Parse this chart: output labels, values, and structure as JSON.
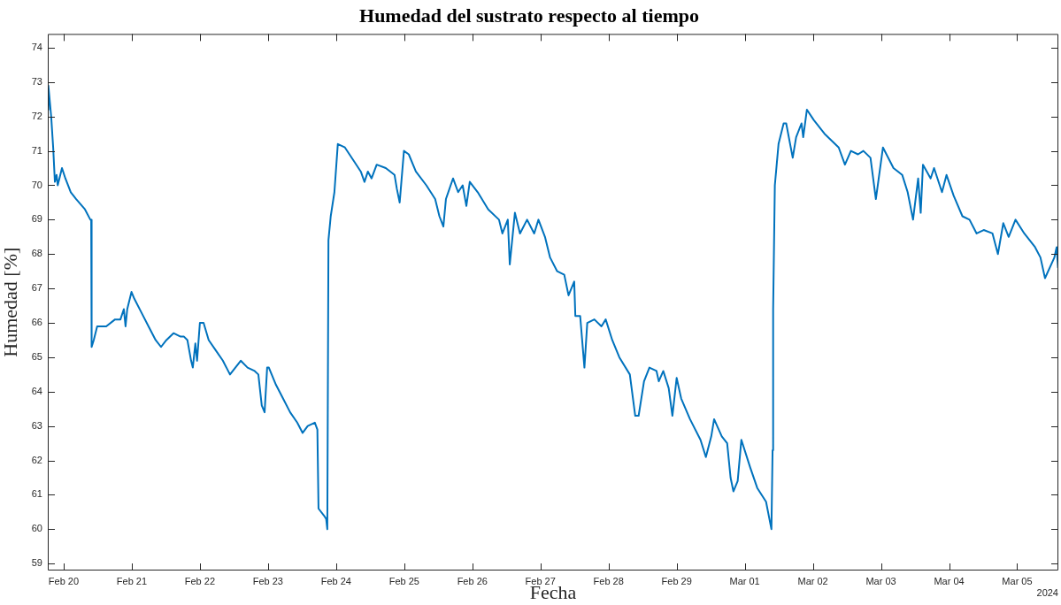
{
  "chart_data": {
    "type": "line",
    "title": "Humedad del sustrato respecto al tiempo",
    "xlabel": "Fecha",
    "ylabel": "Humedad [%]",
    "color": "#0072bd",
    "grid": false,
    "xlim": [
      "2024-02-19T18:24",
      "2024-03-05T14:30"
    ],
    "xticks": [
      {
        "value": "2024-02-20",
        "label": "Feb 20"
      },
      {
        "value": "2024-02-21",
        "label": "Feb 21"
      },
      {
        "value": "2024-02-22",
        "label": "Feb 22"
      },
      {
        "value": "2024-02-23",
        "label": "Feb 23"
      },
      {
        "value": "2024-02-24",
        "label": "Feb 24"
      },
      {
        "value": "2024-02-25",
        "label": "Feb 25"
      },
      {
        "value": "2024-02-26",
        "label": "Feb 26"
      },
      {
        "value": "2024-02-27",
        "label": "Feb 27"
      },
      {
        "value": "2024-02-28",
        "label": "Feb 28"
      },
      {
        "value": "2024-02-29",
        "label": "Feb 29"
      },
      {
        "value": "2024-03-01",
        "label": "Mar 01"
      },
      {
        "value": "2024-03-02",
        "label": "Mar 02"
      },
      {
        "value": "2024-03-03",
        "label": "Mar 03"
      },
      {
        "value": "2024-03-04",
        "label": "Mar 04"
      },
      {
        "value": "2024-03-05",
        "label": "Mar 05"
      }
    ],
    "ylim": [
      58.8,
      74.4
    ],
    "yticks": [
      59,
      60,
      61,
      62,
      63,
      64,
      65,
      66,
      67,
      68,
      69,
      70,
      71,
      72,
      73,
      74
    ],
    "annotations": [
      "2024"
    ],
    "x": [
      "2024-02-19T18:24",
      "2024-02-19T18:36",
      "2024-02-19T19:36",
      "2024-02-19T20:18",
      "2024-02-19T20:54",
      "2024-02-19T21:30",
      "2024-02-19T21:54",
      "2024-02-19T22:30",
      "2024-02-19T23:24",
      "2024-02-20T00:36",
      "2024-02-20T02:30",
      "2024-02-20T04:24",
      "2024-02-20T07:30",
      "2024-02-20T09:24",
      "2024-02-20T09:42",
      "2024-02-20T09:51",
      "2024-02-20T10:36",
      "2024-02-20T11:48",
      "2024-02-20T15:00",
      "2024-02-20T18:06",
      "2024-02-20T20:00",
      "2024-02-20T21:12",
      "2024-02-20T21:48",
      "2024-02-20T22:24",
      "2024-02-20T23:54",
      "2024-02-21T00:54",
      "2024-02-21T03:24",
      "2024-02-21T05:54",
      "2024-02-21T08:24",
      "2024-02-21T10:18",
      "2024-02-21T12:12",
      "2024-02-21T14:42",
      "2024-02-21T17:12",
      "2024-02-21T18:24",
      "2024-02-21T19:36",
      "2024-02-21T20:54",
      "2024-02-21T21:30",
      "2024-02-21T22:24",
      "2024-02-21T23:00",
      "2024-02-22T00:00",
      "2024-02-22T01:18",
      "2024-02-22T03:06",
      "2024-02-22T05:36",
      "2024-02-22T08:06",
      "2024-02-22T10:36",
      "2024-02-22T12:30",
      "2024-02-22T14:24",
      "2024-02-22T16:48",
      "2024-02-22T19:18",
      "2024-02-22T20:36",
      "2024-02-22T21:48",
      "2024-02-22T22:48",
      "2024-02-22T23:42",
      "2024-02-23T00:18",
      "2024-02-23T02:48",
      "2024-02-23T05:18",
      "2024-02-23T07:48",
      "2024-02-23T10:18",
      "2024-02-23T12:12",
      "2024-02-23T14:00",
      "2024-02-23T16:30",
      "2024-02-23T17:24",
      "2024-02-23T17:48",
      "2024-02-23T19:42",
      "2024-02-23T20:30",
      "2024-02-23T20:54",
      "2024-02-23T21:18",
      "2024-02-23T22:06",
      "2024-02-23T23:24",
      "2024-02-24T00:36",
      "2024-02-24T03:06",
      "2024-02-24T06:18",
      "2024-02-24T08:42",
      "2024-02-24T10:00",
      "2024-02-24T11:12",
      "2024-02-24T12:30",
      "2024-02-24T14:18",
      "2024-02-24T17:30",
      "2024-02-24T20:36",
      "2024-02-24T21:24",
      "2024-02-24T22:24",
      "2024-02-24T23:54",
      "2024-02-25T01:36",
      "2024-02-25T04:06",
      "2024-02-25T07:48",
      "2024-02-25T10:54",
      "2024-02-25T12:24",
      "2024-02-25T13:48",
      "2024-02-25T14:42",
      "2024-02-25T17:12",
      "2024-02-25T19:00",
      "2024-02-25T20:36",
      "2024-02-25T21:54",
      "2024-02-25T23:06",
      "2024-02-26T01:54",
      "2024-02-26T05:36",
      "2024-02-26T09:24",
      "2024-02-26T10:36",
      "2024-02-26T12:30",
      "2024-02-26T13:12",
      "2024-02-26T15:00",
      "2024-02-26T16:48",
      "2024-02-26T19:18",
      "2024-02-26T21:48",
      "2024-02-26T23:18",
      "2024-02-27T01:36",
      "2024-02-27T03:24",
      "2024-02-27T05:54",
      "2024-02-27T08:24",
      "2024-02-27T09:54",
      "2024-02-27T11:54",
      "2024-02-27T12:18",
      "2024-02-27T14:00",
      "2024-02-27T15:30",
      "2024-02-27T16:30",
      "2024-02-27T19:00",
      "2024-02-27T21:30",
      "2024-02-27T23:00",
      "2024-02-28T01:18",
      "2024-02-28T03:48",
      "2024-02-28T07:30",
      "2024-02-28T09:24",
      "2024-02-28T10:36",
      "2024-02-28T12:30",
      "2024-02-28T14:24",
      "2024-02-28T16:54",
      "2024-02-28T17:42",
      "2024-02-28T19:18",
      "2024-02-28T21:12",
      "2024-02-28T22:30",
      "2024-02-29T00:00",
      "2024-02-29T01:36",
      "2024-02-29T04:42",
      "2024-02-29T08:24",
      "2024-02-29T10:18",
      "2024-02-29T12:12",
      "2024-02-29T13:12",
      "2024-02-29T15:54",
      "2024-02-29T17:48",
      "2024-02-29T19:00",
      "2024-02-29T20:00",
      "2024-02-29T21:30",
      "2024-02-29T22:48",
      "2024-03-01T01:54",
      "2024-03-01T04:24",
      "2024-03-01T07:30",
      "2024-03-01T09:24",
      "2024-03-01T09:48",
      "2024-03-01T10:00",
      "2024-03-01T10:36",
      "2024-03-01T11:54",
      "2024-03-01T13:42",
      "2024-03-01T14:36",
      "2024-03-01T16:54",
      "2024-03-01T18:06",
      "2024-03-01T20:00",
      "2024-03-01T20:36",
      "2024-03-01T21:54",
      "2024-03-02T00:18",
      "2024-03-02T04:06",
      "2024-03-02T06:36",
      "2024-03-02T09:06",
      "2024-03-02T11:18",
      "2024-03-02T13:24",
      "2024-03-02T15:54",
      "2024-03-02T17:48",
      "2024-03-02T20:18",
      "2024-03-02T22:12",
      "2024-03-03T00:42",
      "2024-03-03T04:24",
      "2024-03-03T07:30",
      "2024-03-03T09:24",
      "2024-03-03T11:18",
      "2024-03-03T13:06",
      "2024-03-03T14:00",
      "2024-03-03T14:48",
      "2024-03-03T17:30",
      "2024-03-03T18:42",
      "2024-03-03T21:30",
      "2024-03-03T23:06",
      "2024-03-04T01:36",
      "2024-03-04T04:42",
      "2024-03-04T07:12",
      "2024-03-04T09:42",
      "2024-03-04T12:12",
      "2024-03-04T15:18",
      "2024-03-04T17:12",
      "2024-03-04T19:06",
      "2024-03-04T21:00",
      "2024-03-04T23:24",
      "2024-03-05T02:30",
      "2024-03-05T06:18",
      "2024-03-05T08:12",
      "2024-03-05T09:48",
      "2024-03-05T13:06",
      "2024-03-05T13:54",
      "2024-03-05T14:24"
    ],
    "values": [
      72.2,
      72.9,
      72.0,
      71.1,
      70.1,
      70.3,
      70.0,
      70.2,
      70.5,
      70.2,
      69.8,
      69.6,
      69.3,
      69.0,
      69.0,
      65.3,
      65.5,
      65.9,
      65.9,
      66.1,
      66.1,
      66.4,
      65.9,
      66.4,
      66.9,
      66.7,
      66.3,
      65.9,
      65.5,
      65.3,
      65.5,
      65.7,
      65.6,
      65.6,
      65.5,
      64.9,
      64.7,
      65.4,
      64.9,
      66.0,
      66.0,
      65.5,
      65.2,
      64.9,
      64.5,
      64.7,
      64.9,
      64.7,
      64.6,
      64.5,
      63.6,
      63.4,
      64.7,
      64.7,
      64.2,
      63.8,
      63.4,
      63.1,
      62.8,
      63.0,
      63.1,
      62.9,
      60.6,
      60.4,
      60.3,
      60.0,
      68.4,
      69.1,
      69.8,
      71.2,
      71.1,
      70.7,
      70.4,
      70.1,
      70.4,
      70.2,
      70.6,
      70.5,
      70.3,
      69.9,
      69.5,
      71.0,
      70.9,
      70.4,
      70.0,
      69.6,
      69.1,
      68.8,
      69.6,
      70.2,
      69.8,
      70.0,
      69.4,
      70.1,
      69.8,
      69.3,
      69.0,
      68.6,
      69.0,
      67.7,
      69.2,
      68.6,
      69.0,
      68.6,
      69.0,
      68.5,
      67.9,
      67.5,
      67.4,
      66.8,
      67.2,
      66.2,
      66.2,
      64.7,
      66.0,
      66.1,
      65.9,
      66.1,
      65.5,
      65.0,
      64.5,
      63.3,
      63.3,
      64.3,
      64.7,
      64.6,
      64.3,
      64.6,
      64.1,
      63.3,
      64.4,
      63.8,
      63.2,
      62.6,
      62.1,
      62.7,
      63.2,
      62.7,
      62.5,
      61.5,
      61.1,
      61.4,
      62.6,
      61.8,
      61.2,
      60.8,
      60.0,
      62.3,
      66.4,
      70.0,
      71.2,
      71.8,
      71.8,
      70.8,
      71.4,
      71.8,
      71.4,
      72.2,
      71.9,
      71.5,
      71.3,
      71.1,
      70.6,
      71.0,
      70.9,
      71.0,
      70.8,
      69.6,
      71.1,
      70.5,
      70.3,
      69.8,
      69.0,
      70.2,
      69.2,
      70.6,
      70.2,
      70.5,
      69.8,
      70.3,
      69.7,
      69.1,
      69.0,
      68.6,
      68.7,
      68.6,
      68.0,
      68.9,
      68.5,
      69.0,
      68.6,
      68.2,
      67.9,
      67.3,
      67.9,
      68.2,
      67.6
    ]
  }
}
